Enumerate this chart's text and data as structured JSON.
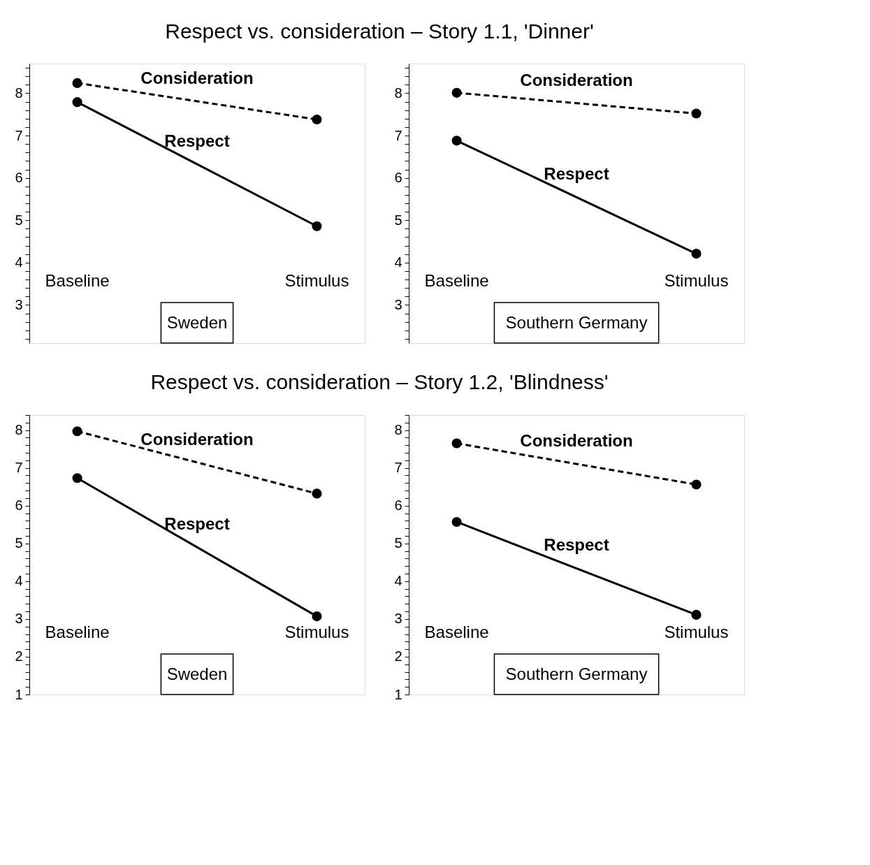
{
  "chart_data": [
    {
      "type": "line",
      "title": "Respect vs. consideration – Story 1.1, 'Dinner'",
      "categories": [
        "Baseline",
        "Stimulus"
      ],
      "marker": "circle",
      "ylim": [
        2.1,
        8.7
      ],
      "yticks": [
        {
          "value": 2.2,
          "label": null
        },
        {
          "value": 2.4,
          "label": null
        },
        {
          "value": 2.6,
          "label": null
        },
        {
          "value": 2.8,
          "label": null
        },
        3,
        {
          "value": 3.2,
          "label": null
        },
        {
          "value": 3.4,
          "label": null
        },
        {
          "value": 3.6,
          "label": null
        },
        {
          "value": 3.8,
          "label": null
        },
        4,
        {
          "value": 4.2,
          "label": null
        },
        {
          "value": 4.4,
          "label": null
        },
        {
          "value": 4.6,
          "label": null
        },
        {
          "value": 4.8,
          "label": null
        },
        5,
        {
          "value": 5.2,
          "label": null
        },
        {
          "value": 5.4,
          "label": null
        },
        {
          "value": 5.6,
          "label": null
        },
        {
          "value": 5.8,
          "label": null
        },
        6,
        {
          "value": 6.2,
          "label": null
        },
        {
          "value": 6.4,
          "label": null
        },
        {
          "value": 6.6,
          "label": null
        },
        {
          "value": 6.8,
          "label": null
        },
        7,
        {
          "value": 7.2,
          "label": null
        },
        {
          "value": 7.4,
          "label": null
        },
        {
          "value": 7.6,
          "label": null
        },
        {
          "value": 7.8,
          "label": null
        },
        8,
        {
          "value": 8.2,
          "label": null
        },
        {
          "value": 8.4,
          "label": null
        },
        {
          "value": 8.6,
          "label": null
        }
      ],
      "series": [
        {
          "name": "Consideration",
          "color": "#000000",
          "line_style": "dashed",
          "values": [
            8.24,
            7.38
          ]
        },
        {
          "name": "Respect",
          "color": "#000000",
          "line_style": "solid",
          "values": [
            7.79,
            4.86
          ]
        }
      ],
      "annotations": [
        "Sweden"
      ]
    },
    {
      "type": "line",
      "categories": [
        "Baseline",
        "Stimulus"
      ],
      "marker": "circle",
      "ylim": [
        2.1,
        8.7
      ],
      "yticks": [
        {
          "value": 2.2,
          "label": null
        },
        {
          "value": 2.4,
          "label": null
        },
        {
          "value": 2.6,
          "label": null
        },
        {
          "value": 2.8,
          "label": null
        },
        3,
        {
          "value": 3.2,
          "label": null
        },
        {
          "value": 3.4,
          "label": null
        },
        {
          "value": 3.6,
          "label": null
        },
        {
          "value": 3.8,
          "label": null
        },
        4,
        {
          "value": 4.2,
          "label": null
        },
        {
          "value": 4.4,
          "label": null
        },
        {
          "value": 4.6,
          "label": null
        },
        {
          "value": 4.8,
          "label": null
        },
        5,
        {
          "value": 5.2,
          "label": null
        },
        {
          "value": 5.4,
          "label": null
        },
        {
          "value": 5.6,
          "label": null
        },
        {
          "value": 5.8,
          "label": null
        },
        6,
        {
          "value": 6.2,
          "label": null
        },
        {
          "value": 6.4,
          "label": null
        },
        {
          "value": 6.6,
          "label": null
        },
        {
          "value": 6.8,
          "label": null
        },
        7,
        {
          "value": 7.2,
          "label": null
        },
        {
          "value": 7.4,
          "label": null
        },
        {
          "value": 7.6,
          "label": null
        },
        {
          "value": 7.8,
          "label": null
        },
        8,
        {
          "value": 8.2,
          "label": null
        },
        {
          "value": 8.4,
          "label": null
        },
        {
          "value": 8.6,
          "label": null
        }
      ],
      "series": [
        {
          "name": "Consideration",
          "color": "#000000",
          "line_style": "dashed",
          "values": [
            8.01,
            7.52
          ]
        },
        {
          "name": "Respect",
          "color": "#000000",
          "line_style": "solid",
          "values": [
            6.88,
            4.21
          ]
        }
      ],
      "annotations": [
        "Southern Germany"
      ]
    },
    {
      "type": "line",
      "title": "Respect vs. consideration – Story 1.2, 'Blindness'",
      "categories": [
        "Baseline",
        "Stimulus"
      ],
      "marker": "circle",
      "ylim": [
        1,
        8.4
      ],
      "yticks": [
        1,
        {
          "value": 1.2,
          "label": null
        },
        {
          "value": 1.4,
          "label": null
        },
        {
          "value": 1.6,
          "label": null
        },
        {
          "value": 1.8,
          "label": null
        },
        2,
        {
          "value": 2.2,
          "label": null
        },
        {
          "value": 2.4,
          "label": null
        },
        {
          "value": 2.6,
          "label": null
        },
        {
          "value": 2.8,
          "label": null
        },
        3,
        {
          "value": 3.2,
          "label": null
        },
        {
          "value": 3.4,
          "label": null
        },
        {
          "value": 3.6,
          "label": null
        },
        {
          "value": 3.8,
          "label": null
        },
        4,
        {
          "value": 4.2,
          "label": null
        },
        {
          "value": 4.4,
          "label": null
        },
        {
          "value": 4.6,
          "label": null
        },
        {
          "value": 4.8,
          "label": null
        },
        5,
        {
          "value": 5.2,
          "label": null
        },
        {
          "value": 5.4,
          "label": null
        },
        {
          "value": 5.6,
          "label": null
        },
        {
          "value": 5.8,
          "label": null
        },
        6,
        {
          "value": 6.2,
          "label": null
        },
        {
          "value": 6.4,
          "label": null
        },
        {
          "value": 6.6,
          "label": null
        },
        {
          "value": 6.8,
          "label": null
        },
        7,
        {
          "value": 7.2,
          "label": null
        },
        {
          "value": 7.4,
          "label": null
        },
        {
          "value": 7.6,
          "label": null
        },
        {
          "value": 7.8,
          "label": null
        },
        8,
        {
          "value": 8.2,
          "label": null
        },
        {
          "value": 8.4,
          "label": null
        }
      ],
      "series": [
        {
          "name": "Consideration",
          "color": "#000000",
          "line_style": "dashed",
          "values": [
            7.97,
            6.32
          ]
        },
        {
          "name": "Respect",
          "color": "#000000",
          "line_style": "solid",
          "values": [
            6.73,
            3.07
          ]
        }
      ],
      "annotations": [
        "Sweden"
      ]
    },
    {
      "type": "line",
      "categories": [
        "Baseline",
        "Stimulus"
      ],
      "marker": "circle",
      "ylim": [
        1,
        8.4
      ],
      "yticks": [
        1,
        {
          "value": 1.2,
          "label": null
        },
        {
          "value": 1.4,
          "label": null
        },
        {
          "value": 1.6,
          "label": null
        },
        {
          "value": 1.8,
          "label": null
        },
        2,
        {
          "value": 2.2,
          "label": null
        },
        {
          "value": 2.4,
          "label": null
        },
        {
          "value": 2.6,
          "label": null
        },
        {
          "value": 2.8,
          "label": null
        },
        3,
        {
          "value": 3.2,
          "label": null
        },
        {
          "value": 3.4,
          "label": null
        },
        {
          "value": 3.6,
          "label": null
        },
        {
          "value": 3.8,
          "label": null
        },
        4,
        {
          "value": 4.2,
          "label": null
        },
        {
          "value": 4.4,
          "label": null
        },
        {
          "value": 4.6,
          "label": null
        },
        {
          "value": 4.8,
          "label": null
        },
        5,
        {
          "value": 5.2,
          "label": null
        },
        {
          "value": 5.4,
          "label": null
        },
        {
          "value": 5.6,
          "label": null
        },
        {
          "value": 5.8,
          "label": null
        },
        6,
        {
          "value": 6.2,
          "label": null
        },
        {
          "value": 6.4,
          "label": null
        },
        {
          "value": 6.6,
          "label": null
        },
        {
          "value": 6.8,
          "label": null
        },
        7,
        {
          "value": 7.2,
          "label": null
        },
        {
          "value": 7.4,
          "label": null
        },
        {
          "value": 7.6,
          "label": null
        },
        {
          "value": 7.8,
          "label": null
        },
        8,
        {
          "value": 8.2,
          "label": null
        },
        {
          "value": 8.4,
          "label": null
        }
      ],
      "series": [
        {
          "name": "Consideration",
          "color": "#000000",
          "line_style": "dashed",
          "values": [
            7.65,
            6.56
          ]
        },
        {
          "name": "Respect",
          "color": "#000000",
          "line_style": "solid",
          "values": [
            5.57,
            3.11
          ]
        }
      ],
      "annotations": [
        "Southern Germany"
      ]
    }
  ]
}
